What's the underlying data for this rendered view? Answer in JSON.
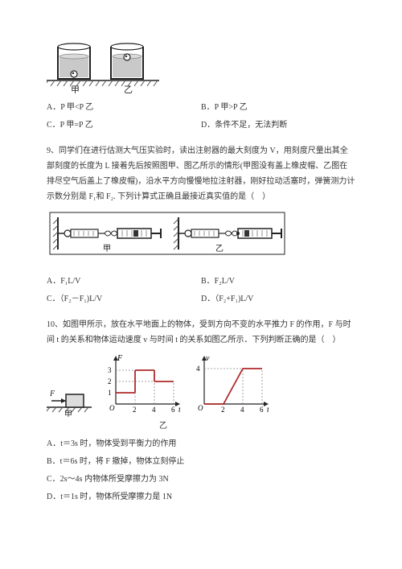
{
  "q8": {
    "beaker": {
      "label_left": "甲",
      "label_right": "乙"
    },
    "opts": {
      "a": "A．P 甲<P 乙",
      "b": "B．P 甲>P 乙",
      "c": "C．P 甲=P 乙",
      "d": "D．条件不足，无法判断"
    }
  },
  "q9": {
    "text": "9、同学们在进行估测大气压实验时，读出注射器的最大刻度为 V，用刻度尺量出其全部刻度的长度为 L 接着先后按照图甲、图乙所示的情形(甲图没有盖上橡皮帽、乙图在排尽空气后盖上了橡皮帽)，沿水平方向慢慢地拉注射器，刚好拉动活塞时，弹簧测力计示数分别是 F₁和 F₂. 下列计算式正确且最接近真实值的是（　）",
    "labels": {
      "left": "甲",
      "right": "乙"
    },
    "opts": {
      "a": "A．F₁L/V",
      "b": "B．F₂L/V",
      "c": "C．（F₂－F₁)L/V",
      "d": "D．（F₂+F₁)L/V"
    }
  },
  "q10": {
    "text": "10、如图甲所示，放在水平地面上的物体，受到方向不变的水平推力 F 的作用，F 与时间 t 的关系和物体运动速度 v 与时间 t 的关系如图乙所示．下列判断正确的是（　）",
    "labels": {
      "left": "甲",
      "right": "乙"
    },
    "graphF": {
      "ylabel": "F",
      "xlabel": "t",
      "xticks": [
        "2",
        "4",
        "6"
      ],
      "yticks": [
        "1",
        "2",
        "3"
      ],
      "bars": [
        {
          "x0": 0,
          "x1": 2,
          "y": 1
        },
        {
          "x0": 2,
          "x1": 4,
          "y": 3
        },
        {
          "x0": 4,
          "x1": 6,
          "y": 2
        }
      ],
      "line_color": "#b02a2a"
    },
    "graphV": {
      "ylabel": "v",
      "xlabel": "t",
      "xticks": [
        "2",
        "4",
        "6"
      ],
      "yticks": [
        "4"
      ],
      "points": [
        [
          0,
          0
        ],
        [
          2,
          0
        ],
        [
          4,
          4
        ],
        [
          6,
          4
        ]
      ],
      "line_color": "#b02a2a"
    },
    "opts": {
      "a": "A．t＝3s 时，物体受到平衡力的作用",
      "b": "B．t＝6s 时，将 F 撤掉，物体立刻停止",
      "c": "C．2s～4s 内物体所受摩擦力为 3N",
      "d": "D．t＝1s 时，物体所受摩擦力是 1N"
    }
  },
  "colors": {
    "ink": "#222",
    "liquid": "#bdbdbd",
    "hatch": "#555",
    "graph_axis": "#222",
    "graph_dash": "#888"
  }
}
